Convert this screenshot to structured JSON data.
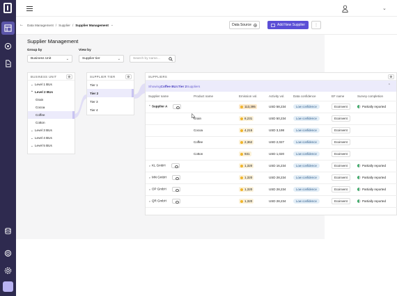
{
  "colors": {
    "rail": "#2e2a4f",
    "accent": "#5b4fd6",
    "selection": "#ecebfb",
    "confidence_pill": "#e3eef7",
    "emissions_badge": "#fbf1d8",
    "survey_partial": "#2aa35a"
  },
  "rail": {
    "icons": [
      "logo-icon",
      "table-icon",
      "radar-icon",
      "document-icon",
      "database-icon",
      "support-icon",
      "settings-icon",
      "avatar"
    ]
  },
  "topbar": {
    "menu_icon": "hamburger-icon",
    "user_icon": "user-icon",
    "caret": "⌄"
  },
  "breadcrumb": {
    "back": "←",
    "items": [
      "Data Management",
      "Supplier",
      "Supplier Management"
    ],
    "separator": "/",
    "caret": "⌄"
  },
  "toolbar": {
    "data_source_label": "Data Source",
    "add_supplier_label": "Add New Supplier",
    "more_label": "⋮"
  },
  "page": {
    "title": "Supplier Management",
    "group_by_label": "Group by",
    "group_by_value": "Business Unit",
    "view_by_label": "View by",
    "view_by_value": "Supplier tier",
    "search_placeholder": "Search by name..."
  },
  "business_unit": {
    "header": "BUSINESS UNIT",
    "rows": [
      {
        "chev": "⌄",
        "label": "Level 1 BUs",
        "child": false,
        "selected": false,
        "bold": false
      },
      {
        "chev": "⌃",
        "label": "Level 2 BUs",
        "child": false,
        "selected": false,
        "bold": true
      },
      {
        "chev": "",
        "label": "Grain",
        "child": true,
        "selected": false,
        "bold": false
      },
      {
        "chev": "",
        "label": "Cocoa",
        "child": true,
        "selected": false,
        "bold": false
      },
      {
        "chev": "",
        "label": "Coffee",
        "child": true,
        "selected": true,
        "bold": false
      },
      {
        "chev": "",
        "label": "Cotton",
        "child": true,
        "selected": false,
        "bold": false
      },
      {
        "chev": "⌄",
        "label": "Level 3 BUs",
        "child": false,
        "selected": false,
        "bold": false
      },
      {
        "chev": "⌄",
        "label": "Level 4 BUs",
        "child": false,
        "selected": false,
        "bold": false
      },
      {
        "chev": "⌄",
        "label": "Level 5 BUs",
        "child": false,
        "selected": false,
        "bold": false
      }
    ]
  },
  "supplier_tier": {
    "header": "SUPPLIER TIER",
    "rows": [
      {
        "label": "Tier 1",
        "selected": false
      },
      {
        "label": "Tier 2",
        "selected": true
      },
      {
        "label": "Tier 3",
        "selected": false
      },
      {
        "label": "Tier 4",
        "selected": false
      }
    ]
  },
  "suppliers": {
    "header": "SUPPLIERS",
    "showing_prefix": "Showing ",
    "showing_bu": "Coffee BU",
    "showing_mid": " & ",
    "showing_tier": "Tier 2",
    "showing_suffix": " Suppliers",
    "columns": [
      "Supplier name",
      "Product name",
      "Emission vol.",
      "Activity vol.",
      "Data confidence",
      "EF name",
      "Survey completion"
    ],
    "rows": [
      {
        "chev": "⌃",
        "supplier": "Supplier A",
        "bold": true,
        "eye": true,
        "product": "",
        "emission": "113,395",
        "hi": true,
        "activity": "USD 58,234",
        "confidence": "Low confidence",
        "ef": "Ecoinvent",
        "survey": "Partially reported"
      },
      {
        "chev": "",
        "supplier": "",
        "bold": false,
        "eye": false,
        "product": "Grain",
        "emission": "8,231",
        "hi": false,
        "activity": "USD 50,234",
        "confidence": "Low confidence",
        "ef": "Ecoinvent",
        "survey": ""
      },
      {
        "chev": "",
        "supplier": "",
        "bold": false,
        "eye": false,
        "product": "Cocoa",
        "emission": "4,215",
        "hi": false,
        "activity": "USD 3,198",
        "confidence": "Low confidence",
        "ef": "Ecoinvent",
        "survey": ""
      },
      {
        "chev": "",
        "supplier": "",
        "bold": false,
        "eye": false,
        "product": "Coffee",
        "emission": "2,362",
        "hi": false,
        "activity": "USD 2,027",
        "confidence": "Low confidence",
        "ef": "Ecoinvent",
        "survey": ""
      },
      {
        "chev": "",
        "supplier": "",
        "bold": false,
        "eye": false,
        "product": "Cotton",
        "emission": "931",
        "hi": false,
        "activity": "USD 1,020",
        "confidence": "Low confidence",
        "ef": "Ecoinvent",
        "survey": ""
      },
      {
        "chev": "⌄",
        "supplier": "KL GmbH",
        "bold": false,
        "eye": true,
        "product": "",
        "emission": "1,320",
        "hi": false,
        "activity": "USD 16,234",
        "confidence": "Low confidence",
        "ef": "Ecoinvent",
        "survey": "Partially reported"
      },
      {
        "chev": "⌄",
        "supplier": "MN GmbH",
        "bold": false,
        "eye": true,
        "product": "",
        "emission": "1,320",
        "hi": false,
        "activity": "USD 28,234",
        "confidence": "Low confidence",
        "ef": "Ecoinvent",
        "survey": "Partially reported"
      },
      {
        "chev": "⌄",
        "supplier": "OP GmbH",
        "bold": false,
        "eye": true,
        "product": "",
        "emission": "1,320",
        "hi": false,
        "activity": "USD 28,234",
        "confidence": "Low confidence",
        "ef": "Ecoinvent",
        "survey": "Partially reported"
      },
      {
        "chev": "⌄",
        "supplier": "QR GmbH",
        "bold": false,
        "eye": true,
        "product": "",
        "emission": "1,320",
        "hi": false,
        "activity": "USD 28,234",
        "confidence": "Low confidence",
        "ef": "Ecoinvent",
        "survey": "Partially reported"
      }
    ]
  }
}
